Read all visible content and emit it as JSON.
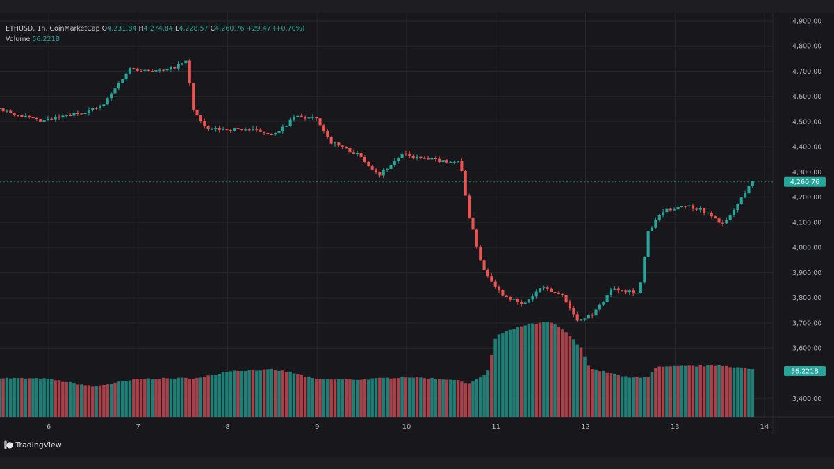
{
  "legend": {
    "symbol": "ETHUSD, 1h, CoinMarketCap",
    "open_label": "O",
    "open": "4,231.84",
    "high_label": "H",
    "high": "4,274.84",
    "low_label": "L",
    "low": "4,228.57",
    "close_label": "C",
    "close": "4,260.76",
    "change": "+29.47 (+0.70%)",
    "volume_label": "Volume",
    "volume": "56.221B"
  },
  "brand": {
    "name": "TradingView",
    "icon": "tradingview-logo-icon"
  },
  "colors": {
    "background": "#18181c",
    "up": "#26a69a",
    "down": "#ef5350",
    "grid": "#26262c",
    "axis_text": "#b2b5be"
  },
  "chart_data": {
    "type": "candlestick",
    "interval": "1h",
    "x_ticks": [
      "6",
      "7",
      "8",
      "9",
      "10",
      "11",
      "12",
      "13",
      "14"
    ],
    "y_ticks": [
      "4,900.00",
      "4,800.00",
      "4,700.00",
      "4,600.00",
      "4,500.00",
      "4,400.00",
      "4,300.00",
      "4,200.00",
      "4,100.00",
      "4,000.00",
      "3,900.00",
      "3,800.00",
      "3,700.00",
      "3,600.00",
      "3,400.00"
    ],
    "ylim": [
      3360,
      4920
    ],
    "last_price_label": "4,260.76",
    "last_volume_label": "56.221B",
    "grid": true,
    "price_path": [
      [
        5.45,
        4550
      ],
      [
        5.9,
        4500
      ],
      [
        6.3,
        4530
      ],
      [
        6.6,
        4560
      ],
      [
        6.9,
        4710
      ],
      [
        7.3,
        4700
      ],
      [
        7.55,
        4740
      ],
      [
        7.6,
        4560
      ],
      [
        7.75,
        4470
      ],
      [
        8.2,
        4470
      ],
      [
        8.55,
        4450
      ],
      [
        8.75,
        4520
      ],
      [
        9.0,
        4510
      ],
      [
        9.15,
        4420
      ],
      [
        9.45,
        4370
      ],
      [
        9.7,
        4290
      ],
      [
        9.95,
        4370
      ],
      [
        10.2,
        4350
      ],
      [
        10.6,
        4340
      ],
      [
        10.7,
        4120
      ],
      [
        10.85,
        3920
      ],
      [
        11.05,
        3820
      ],
      [
        11.3,
        3770
      ],
      [
        11.5,
        3840
      ],
      [
        11.75,
        3810
      ],
      [
        11.9,
        3710
      ],
      [
        12.1,
        3740
      ],
      [
        12.3,
        3840
      ],
      [
        12.6,
        3820
      ],
      [
        12.7,
        4060
      ],
      [
        12.85,
        4140
      ],
      [
        13.1,
        4170
      ],
      [
        13.3,
        4150
      ],
      [
        13.55,
        4090
      ],
      [
        13.75,
        4200
      ],
      [
        13.85,
        4261
      ]
    ],
    "volume_path": [
      [
        5.45,
        3482
      ],
      [
        6.0,
        3478
      ],
      [
        6.5,
        3448
      ],
      [
        7.0,
        3478
      ],
      [
        7.7,
        3482
      ],
      [
        8.0,
        3510
      ],
      [
        8.5,
        3515
      ],
      [
        8.7,
        3505
      ],
      [
        9.0,
        3476
      ],
      [
        9.5,
        3476
      ],
      [
        10.0,
        3486
      ],
      [
        10.5,
        3476
      ],
      [
        10.7,
        3462
      ],
      [
        10.9,
        3498
      ],
      [
        11.0,
        3650
      ],
      [
        11.3,
        3690
      ],
      [
        11.6,
        3705
      ],
      [
        11.8,
        3660
      ],
      [
        11.95,
        3600
      ],
      [
        12.05,
        3520
      ],
      [
        12.5,
        3482
      ],
      [
        12.7,
        3488
      ],
      [
        12.8,
        3525
      ],
      [
        13.5,
        3532
      ],
      [
        13.7,
        3525
      ],
      [
        13.85,
        3516
      ]
    ]
  }
}
